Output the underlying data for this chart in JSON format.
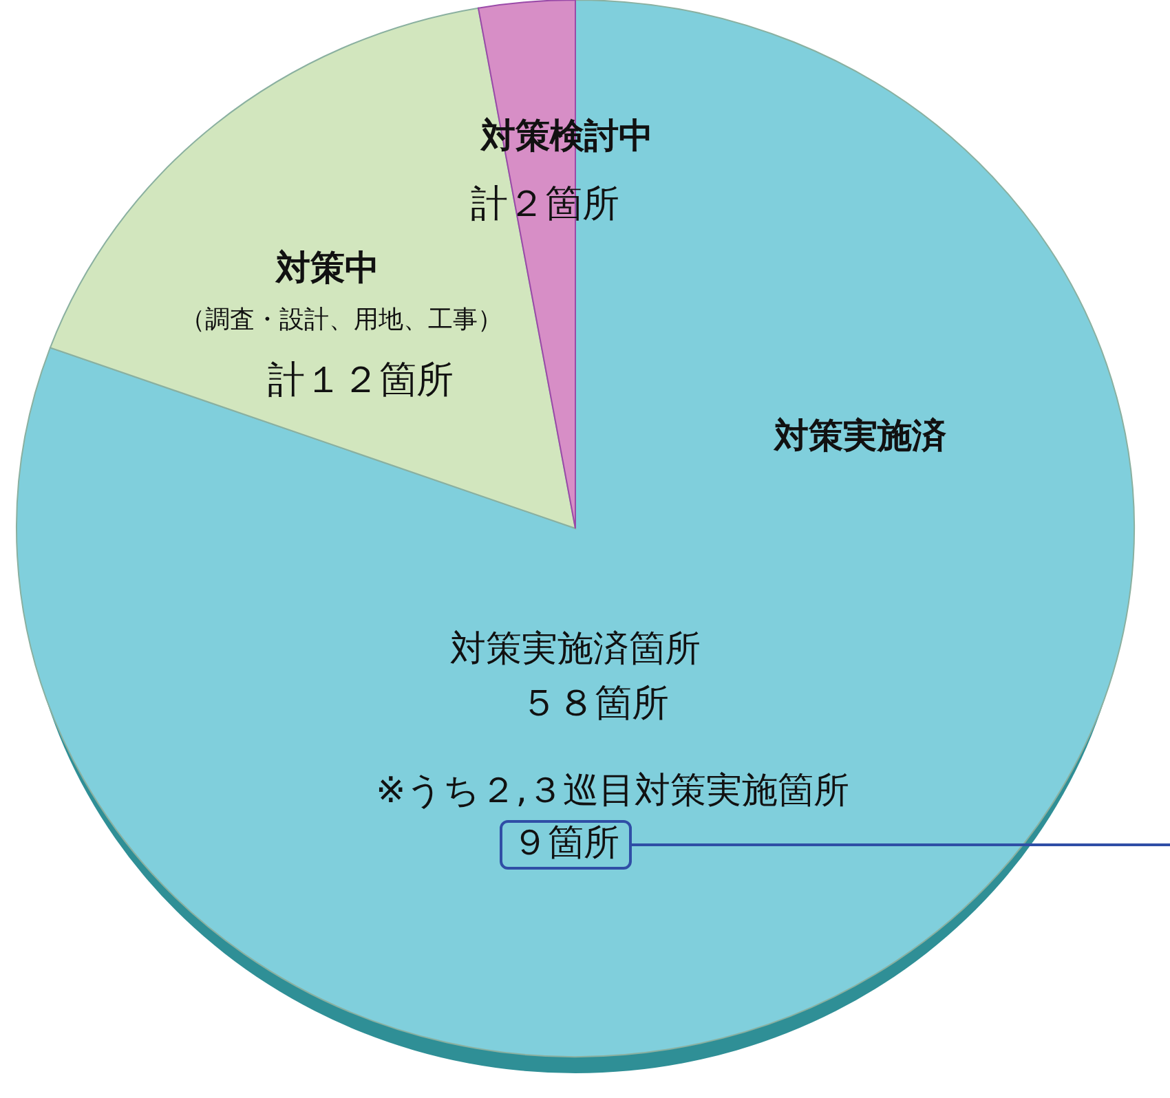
{
  "chart_data": {
    "type": "pie",
    "categories": [
      "対策実施済",
      "対策中",
      "対策検討中"
    ],
    "values": [
      58,
      12,
      2
    ],
    "colors": [
      "#80cfdc",
      "#d2e6be",
      "#d78ec6"
    ],
    "value_labels": [
      "５８箇所",
      "計１２箇所",
      "計２箇所"
    ],
    "annotations": [
      "（調査・設計、用地、工事）",
      "対策実施済箇所",
      "※うち２,３巡目対策実施箇所",
      "９箇所"
    ]
  }
}
